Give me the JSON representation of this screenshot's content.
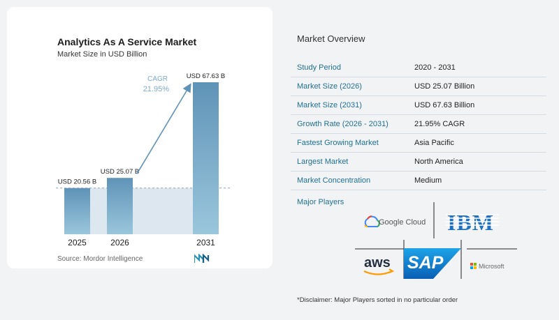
{
  "chart_data": {
    "type": "bar",
    "title": "Analytics As A Service Market",
    "subtitle": "Market Size in USD Billion",
    "categories": [
      "2025",
      "2026",
      "2031"
    ],
    "values": [
      20.56,
      25.07,
      67.63
    ],
    "value_labels": [
      "USD 20.56 B",
      "USD 25.07 B",
      "USD 67.63 B"
    ],
    "cagr_label": "CAGR",
    "cagr_value": "21.95%",
    "source": "Source:  Mordor Intelligence",
    "colors": {
      "bar_top": "#5f93b7",
      "bar_bottom": "#9ac6dc",
      "band": "#dde7ef",
      "arrow": "#5f93b7",
      "cagr_text": "#7aa9c9"
    }
  },
  "overview": {
    "title": "Market Overview",
    "rows": [
      {
        "key": "Study Period",
        "value": "2020 - 2031"
      },
      {
        "key": "Market Size (2026)",
        "value": "USD 25.07 Billion"
      },
      {
        "key": "Market Size (2031)",
        "value": "USD 67.63 Billion"
      },
      {
        "key": "Growth Rate (2026 - 2031)",
        "value": "21.95% CAGR"
      },
      {
        "key": "Fastest Growing Market",
        "value": "Asia Pacific"
      },
      {
        "key": "Largest Market",
        "value": "North America"
      },
      {
        "key": "Market Concentration",
        "value": "Medium"
      }
    ]
  },
  "players": {
    "title": "Major Players",
    "logos": [
      {
        "icon": "google-cloud-logo",
        "text": "Google Cloud"
      },
      {
        "icon": "ibm-logo",
        "text": "IBM"
      },
      {
        "icon": "aws-logo",
        "text": "aws"
      },
      {
        "icon": "sap-logo",
        "text": "SAP"
      },
      {
        "icon": "microsoft-logo",
        "text": "Microsoft"
      }
    ]
  },
  "disclaimer": "*Disclaimer: Major Players sorted in no particular order"
}
